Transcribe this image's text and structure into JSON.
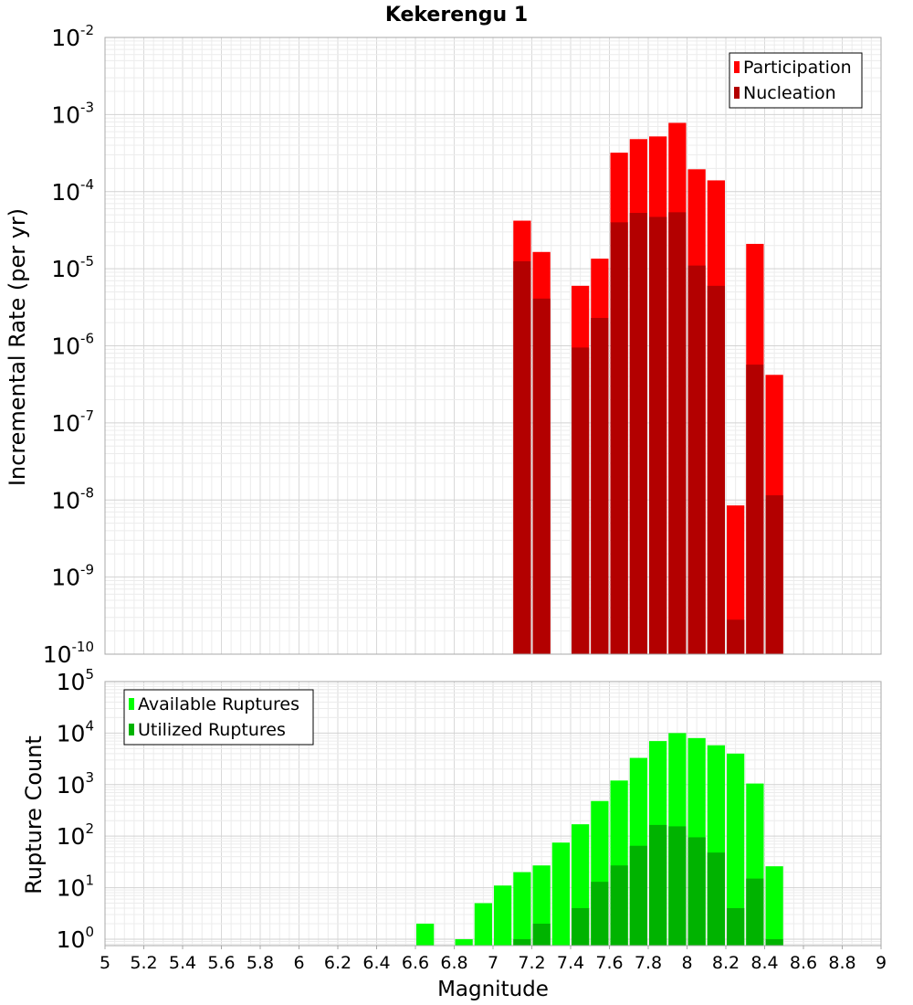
{
  "chart_data": [
    {
      "type": "bar",
      "title": "Kekerengu 1",
      "ylabel": "Incremental Rate (per yr)",
      "xlim": [
        5,
        9
      ],
      "ylim": [
        1e-10,
        0.01
      ],
      "yscale": "log",
      "bar_width": 0.1,
      "grid": true,
      "legend_position": "top-right",
      "y_ticks": [
        {
          "base": "10",
          "exp": "-10"
        },
        {
          "base": "10",
          "exp": "-9"
        },
        {
          "base": "10",
          "exp": "-8"
        },
        {
          "base": "10",
          "exp": "-7"
        },
        {
          "base": "10",
          "exp": "-6"
        },
        {
          "base": "10",
          "exp": "-5"
        },
        {
          "base": "10",
          "exp": "-4"
        },
        {
          "base": "10",
          "exp": "-3"
        },
        {
          "base": "10",
          "exp": "-2"
        }
      ],
      "x": [
        7.15,
        7.25,
        7.45,
        7.55,
        7.65,
        7.75,
        7.85,
        7.95,
        8.05,
        8.15,
        8.25,
        8.35,
        8.45
      ],
      "series": [
        {
          "name": "Participation",
          "color": "#ff0000",
          "values": [
            4.2e-05,
            1.65e-05,
            6e-06,
            1.35e-05,
            0.00032,
            0.00048,
            0.00052,
            0.00078,
            0.000195,
            0.00014,
            8.5e-09,
            2.1e-05,
            4.2e-07
          ]
        },
        {
          "name": "Nucleation",
          "color": "#b30000",
          "values": [
            1.25e-05,
            4.1e-06,
            9.5e-07,
            2.3e-06,
            4e-05,
            5.3e-05,
            4.7e-05,
            5.4e-05,
            1.1e-05,
            6e-06,
            2.8e-10,
            5.7e-07,
            1.15e-08
          ]
        }
      ]
    },
    {
      "type": "bar",
      "xlabel": "Magnitude",
      "ylabel": "Rupture Count",
      "xlim": [
        5,
        9
      ],
      "ylim": [
        0.75,
        100000.0
      ],
      "yscale": "log",
      "bar_width": 0.1,
      "grid": true,
      "legend_position": "top-left",
      "y_ticks": [
        {
          "base": "10",
          "exp": "0"
        },
        {
          "base": "10",
          "exp": "1"
        },
        {
          "base": "10",
          "exp": "2"
        },
        {
          "base": "10",
          "exp": "3"
        },
        {
          "base": "10",
          "exp": "4"
        },
        {
          "base": "10",
          "exp": "5"
        }
      ],
      "x_ticks": [
        "5",
        "5.2",
        "5.4",
        "5.6",
        "5.8",
        "6",
        "6.2",
        "6.4",
        "6.6",
        "6.8",
        "7",
        "7.2",
        "7.4",
        "7.6",
        "7.8",
        "8",
        "8.2",
        "8.4",
        "8.6",
        "8.8",
        "9"
      ],
      "x": [
        6.65,
        6.85,
        6.95,
        7.05,
        7.15,
        7.25,
        7.35,
        7.45,
        7.55,
        7.65,
        7.75,
        7.85,
        7.95,
        8.05,
        8.15,
        8.25,
        8.35,
        8.45
      ],
      "series": [
        {
          "name": "Available Ruptures",
          "color": "#00ff00",
          "values": [
            2,
            1,
            5,
            11,
            20,
            27,
            75,
            170,
            480,
            1200,
            3300,
            7000,
            10000,
            8000,
            5800,
            4000,
            1050,
            26
          ]
        },
        {
          "name": "Utilized Ruptures",
          "color": "#00b300",
          "values": [
            0,
            0,
            0,
            0,
            1,
            2,
            0,
            4,
            13,
            27,
            65,
            165,
            155,
            95,
            48,
            4,
            15,
            1
          ]
        }
      ]
    }
  ]
}
